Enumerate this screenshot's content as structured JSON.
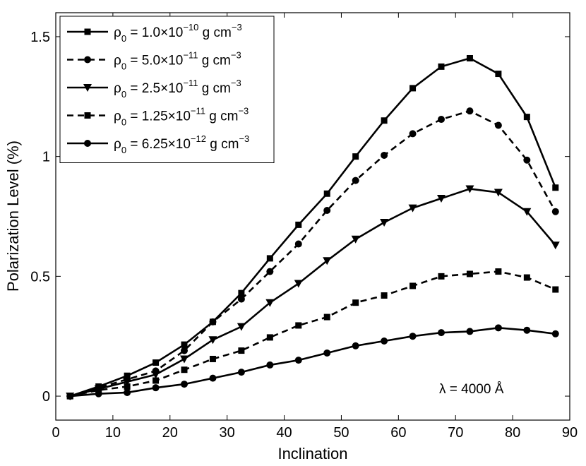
{
  "chart_data": {
    "type": "line",
    "xlabel": "Inclination",
    "ylabel": "Polarization Level (%)",
    "xlim": [
      0,
      90
    ],
    "ylim": [
      -0.1,
      1.6
    ],
    "xticks": [
      0,
      10,
      20,
      30,
      40,
      50,
      60,
      70,
      80,
      90
    ],
    "yticks": [
      0,
      0.5,
      1,
      1.5
    ],
    "xtick_labels": [
      "0",
      "10",
      "20",
      "30",
      "40",
      "50",
      "60",
      "70",
      "80",
      "90"
    ],
    "ytick_labels": [
      "0",
      "0.5",
      "1",
      "1.5"
    ],
    "grid": false,
    "legend_position": "top-left",
    "annotation": "λ = 4000 Å",
    "x": [
      2.5,
      7.5,
      12.5,
      17.5,
      22.5,
      27.5,
      32.5,
      37.5,
      42.5,
      47.5,
      52.5,
      57.5,
      62.5,
      67.5,
      72.5,
      77.5,
      82.5,
      87.5
    ],
    "series": [
      {
        "name": "ρ0 = 1.0×10^-10 g cm^-3",
        "label_main": "ρ",
        "label_sub": "0",
        "label_value": " = 1.0×10",
        "label_exp": "−10",
        "label_units": " g cm",
        "label_units_exp": "−3",
        "marker": "square",
        "linestyle": "solid",
        "values": [
          0.0,
          0.04,
          0.085,
          0.14,
          0.215,
          0.31,
          0.43,
          0.575,
          0.715,
          0.845,
          1.0,
          1.15,
          1.285,
          1.375,
          1.41,
          1.345,
          1.165,
          0.87
        ]
      },
      {
        "name": "ρ0 = 5.0×10^-11 g cm^-3",
        "label_main": "ρ",
        "label_sub": "0",
        "label_value": " = 5.0×10",
        "label_exp": "−11",
        "label_units": " g cm",
        "label_units_exp": "−3",
        "marker": "circle",
        "linestyle": "dashed",
        "values": [
          0.0,
          0.035,
          0.07,
          0.105,
          0.19,
          0.31,
          0.405,
          0.52,
          0.635,
          0.775,
          0.9,
          1.005,
          1.095,
          1.155,
          1.19,
          1.13,
          0.985,
          0.77
        ]
      },
      {
        "name": "ρ0 = 2.5×10^-11 g cm^-3",
        "label_main": "ρ",
        "label_sub": "0",
        "label_value": " = 2.5×10",
        "label_exp": "−11",
        "label_units": " g cm",
        "label_units_exp": "−3",
        "marker": "triangle-down",
        "linestyle": "solid",
        "values": [
          0.0,
          0.03,
          0.06,
          0.09,
          0.155,
          0.235,
          0.29,
          0.39,
          0.47,
          0.565,
          0.655,
          0.725,
          0.785,
          0.825,
          0.865,
          0.85,
          0.77,
          0.63
        ]
      },
      {
        "name": "ρ0 = 1.25×10^-11 g cm^-3",
        "label_main": "ρ",
        "label_sub": "0",
        "label_value": " = 1.25×10",
        "label_exp": "−11",
        "label_units": " g cm",
        "label_units_exp": "−3",
        "marker": "square",
        "linestyle": "dashed",
        "values": [
          0.0,
          0.025,
          0.04,
          0.065,
          0.11,
          0.155,
          0.19,
          0.245,
          0.295,
          0.33,
          0.39,
          0.42,
          0.46,
          0.5,
          0.51,
          0.52,
          0.495,
          0.445
        ]
      },
      {
        "name": "ρ0 = 6.25×10^-12 g cm^-3",
        "label_main": "ρ",
        "label_sub": "0",
        "label_value": " = 6.25×10",
        "label_exp": "−12",
        "label_units": " g cm",
        "label_units_exp": "−3",
        "marker": "circle",
        "linestyle": "solid",
        "values": [
          0.0,
          0.01,
          0.015,
          0.035,
          0.05,
          0.075,
          0.1,
          0.13,
          0.15,
          0.18,
          0.21,
          0.23,
          0.25,
          0.265,
          0.27,
          0.285,
          0.275,
          0.26
        ]
      }
    ]
  }
}
